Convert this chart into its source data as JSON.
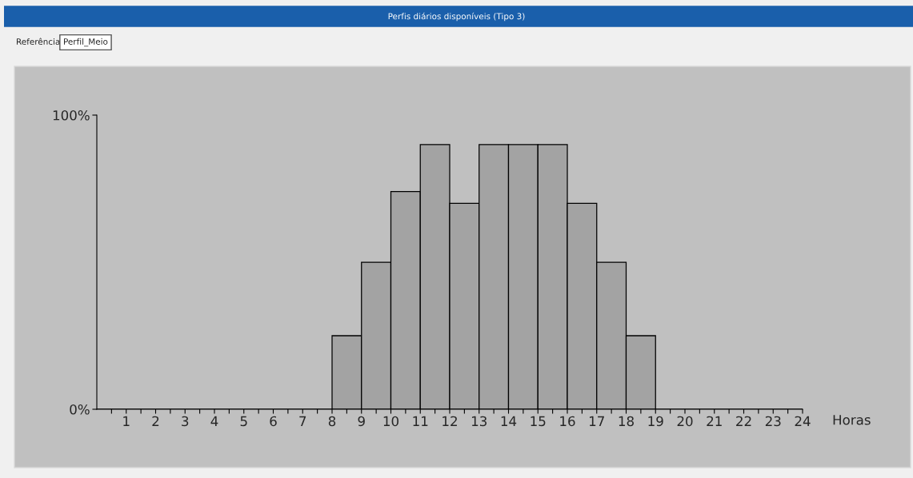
{
  "chart_data": {
    "type": "histogram",
    "title": "Perfis diários disponíveis (Tipo 3)",
    "annotations": [
      "Referência",
      "Perfil_Meio"
    ],
    "xlabel": "Horas",
    "bins": [
      0,
      1,
      2,
      3,
      4,
      5,
      6,
      7,
      8,
      9,
      10,
      11,
      12,
      13,
      14,
      15,
      16,
      17,
      18,
      19,
      20,
      21,
      22,
      23,
      24
    ],
    "values": [
      0,
      0,
      0,
      0,
      0,
      0,
      0,
      0,
      25,
      50,
      74,
      90,
      70,
      90,
      90,
      90,
      70,
      50,
      25,
      0,
      0,
      0,
      0,
      0
    ],
    "color": "#a3a3a3",
    "xlim": [
      0,
      24
    ],
    "xticks": [
      1,
      2,
      3,
      4,
      5,
      6,
      7,
      8,
      9,
      10,
      11,
      12,
      13,
      14,
      15,
      16,
      17,
      18,
      19,
      20,
      21,
      22,
      23,
      24,
      {
        "value": 0.5,
        "label": null
      },
      {
        "value": 1.5,
        "label": null
      },
      {
        "value": 2.5,
        "label": null
      },
      {
        "value": 3.5,
        "label": null
      },
      {
        "value": 4.5,
        "label": null
      },
      {
        "value": 5.5,
        "label": null
      },
      {
        "value": 6.5,
        "label": null
      },
      {
        "value": 7.5,
        "label": null
      },
      {
        "value": 8.5,
        "label": null
      },
      {
        "value": 9.5,
        "label": null
      },
      {
        "value": 10.5,
        "label": null
      },
      {
        "value": 11.5,
        "label": null
      },
      {
        "value": 12.5,
        "label": null
      },
      {
        "value": 13.5,
        "label": null
      },
      {
        "value": 14.5,
        "label": null
      },
      {
        "value": 15.5,
        "label": null
      },
      {
        "value": 16.5,
        "label": null
      },
      {
        "value": 17.5,
        "label": null
      },
      {
        "value": 18.5,
        "label": null
      },
      {
        "value": 19.5,
        "label": null
      },
      {
        "value": 20.5,
        "label": null
      },
      {
        "value": 21.5,
        "label": null
      },
      {
        "value": 22.5,
        "label": null
      },
      {
        "value": 23.5,
        "label": null
      }
    ],
    "ylim": [
      0,
      100
    ],
    "yticks": [
      {
        "value": 0,
        "label": "0%"
      },
      {
        "value": 100,
        "label": "100%"
      }
    ]
  }
}
